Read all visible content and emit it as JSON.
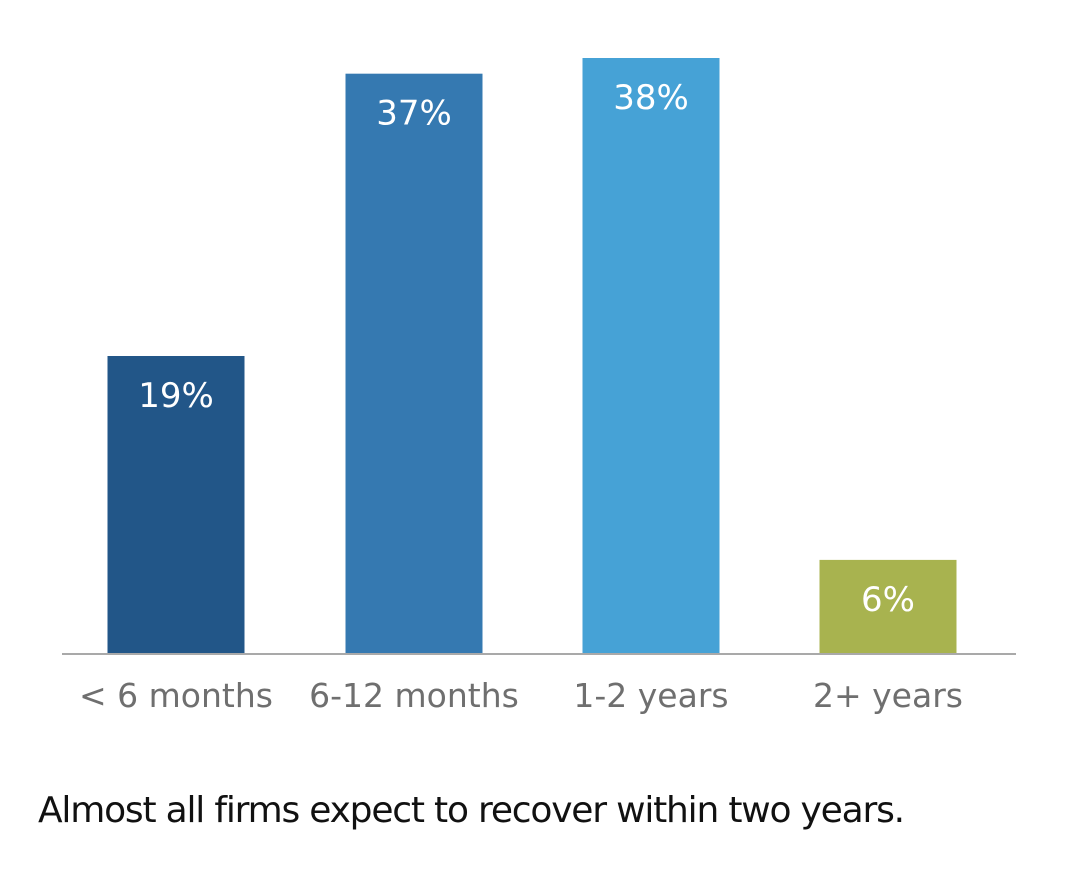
{
  "chart_data": {
    "type": "bar",
    "categories": [
      "< 6 months",
      "6-12 months",
      "1-2 years",
      "2+ years"
    ],
    "values": [
      19,
      37,
      38,
      6
    ],
    "data_labels": [
      "19%",
      "37%",
      "38%",
      "6%"
    ],
    "colors": [
      "#225688",
      "#3579b1",
      "#46a2d6",
      "#a8b34f"
    ],
    "ylim": [
      0,
      38
    ],
    "grid": false,
    "legend": "none",
    "title": "",
    "xlabel": "",
    "ylabel": ""
  },
  "caption": "Almost all firms expect to recover within two years."
}
